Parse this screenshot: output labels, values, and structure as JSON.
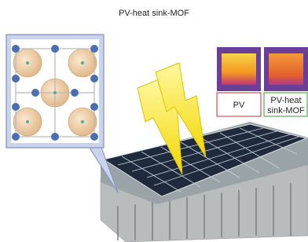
{
  "title": "PV-heat sink-MOF",
  "thermal_images": [
    {
      "label_lines": [
        "PV"
      ]
    },
    {
      "label_lines": [
        "PV-heat",
        "sink-MOF"
      ]
    }
  ]
}
